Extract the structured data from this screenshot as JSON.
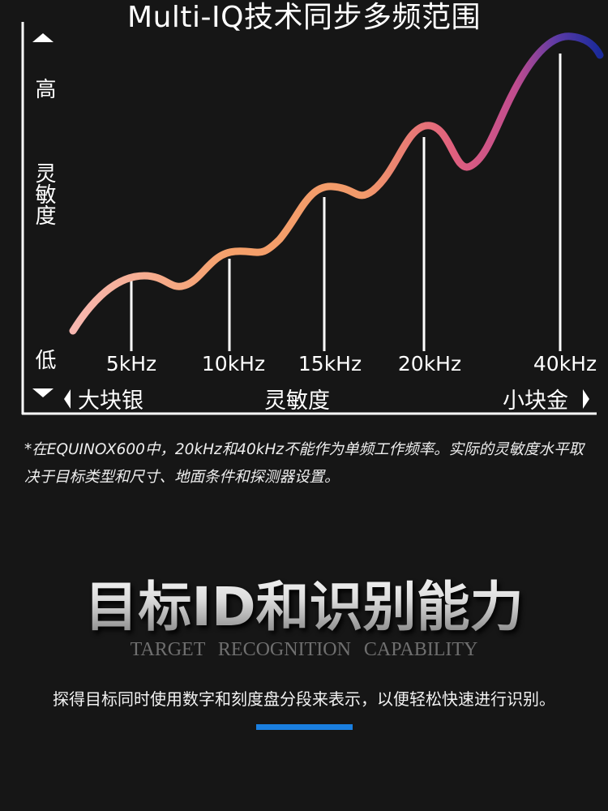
{
  "diagram": {
    "title": "Multi-IQ技术同步多频范围",
    "y_axis": {
      "high_label": "高",
      "label": "灵敏度",
      "low_label": "低"
    },
    "x_axis": {
      "left_label": "大块银",
      "center_label": "灵敏度",
      "right_label": "小块金"
    },
    "frequency_markers": [
      "5kHz",
      "10kHz",
      "15kHz",
      "20kHz",
      "40kHz"
    ],
    "curve_gradient": [
      "#f7b7b0",
      "#f5a06a",
      "#f08a70",
      "#d54f8a",
      "#6a3aa0",
      "#1a2a9a"
    ]
  },
  "footnote": "*在EQUINOX600中，20kHz和40kHz不能作为单频工作频率。实际的灵敏度水平取决于目标类型和尺寸、地面条件和探测器设置。",
  "section": {
    "title": "目标ID和识别能力",
    "subtitle": "TARGET  RECOGNITION  CAPABILITY",
    "description": "探得目标同时使用数字和刻度盘分段来表示，以便轻松快速进行识别。",
    "accent_color": "#1a7fe0"
  }
}
